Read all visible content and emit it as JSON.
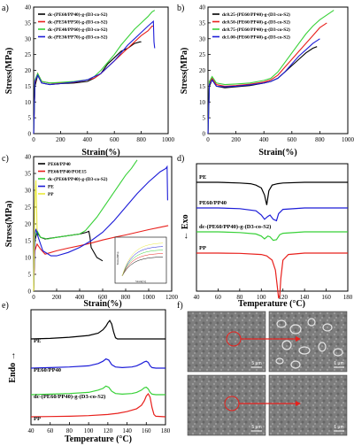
{
  "panels": {
    "a": {
      "label": "a)",
      "xlabel": "Strain(%)",
      "ylabel": "Stress(MPa)",
      "xticks": [
        "0",
        "200",
        "400",
        "600",
        "800",
        "1000"
      ],
      "yticks": [
        "0",
        "5",
        "10",
        "15",
        "20",
        "25",
        "30",
        "35",
        "40"
      ],
      "legend": [
        "dc-(PE60/PP40)-g-(D3-co-S2)",
        "dc-(PE50/PP50)-g-(D3-co-S2)",
        "dc-(PE40/PP60)-g-(D3-co-S2)",
        "dc-(PE30/PP70)-g-(D3-co-S2)"
      ]
    },
    "b": {
      "label": "b)",
      "xlabel": "Strain(%)",
      "ylabel": "Stress(MPa)",
      "xticks": [
        "0",
        "200",
        "400",
        "600",
        "800",
        "1000"
      ],
      "yticks": [
        "0",
        "5",
        "10",
        "15",
        "20",
        "25",
        "30",
        "35",
        "40"
      ],
      "legend": [
        "dc0.25-(PE60/PP40)-g-(D3-co-S2)",
        "dc0.50-(PE60/PP40)-g-(D3-co-S2)",
        "dc0.75-(PE60/PP40)-g-(D3-co-S2)",
        "dc1.00-(PE60/PP40)-g-(D3-co-S2)"
      ]
    },
    "c": {
      "label": "c)",
      "xlabel": "Strain(%)",
      "ylabel": "Stress(MPa)",
      "xticks": [
        "0",
        "200",
        "400",
        "600",
        "800",
        "1000",
        "1200"
      ],
      "yticks": [
        "0",
        "5",
        "10",
        "15",
        "20",
        "25",
        "30",
        "35",
        "40"
      ],
      "legend": [
        "PE60/PP40",
        "PE60/PP40/POE15",
        "dc-(PE60/PP40)-g-(D3-co-S2)",
        "PE",
        "PP"
      ],
      "inset": {
        "xlabel": "Strain(%)",
        "ylabel": "Stress(MPa)"
      }
    },
    "d": {
      "label": "d)",
      "xlabel": "Temperature (°C)",
      "ylabel": "← Exo",
      "xticks": [
        "40",
        "60",
        "80",
        "100",
        "120",
        "140",
        "160",
        "180"
      ],
      "curve_labels": [
        "PE",
        "PE60/PP40",
        "dc-(PE60/PP40)-g-(D3-co-S2)",
        "PP"
      ]
    },
    "e": {
      "label": "e)",
      "xlabel": "Temperature (°C)",
      "ylabel": "Endo →",
      "xticks": [
        "40",
        "60",
        "80",
        "100",
        "120",
        "140",
        "160",
        "180"
      ],
      "curve_labels": [
        "PE",
        "PE60/PP40",
        "dc-(PE60/PP40)-g-(D3-co-S2)",
        "PP"
      ]
    },
    "f": {
      "label": "f)",
      "scale_bars": [
        "5 μm",
        "1 μm",
        "5 μm",
        "1 μm"
      ]
    }
  },
  "colors": {
    "black": "#000000",
    "red": "#e8201c",
    "green": "#38d138",
    "blue": "#1c1cd8",
    "yellow": "#e9e93a"
  },
  "chart_data": [
    {
      "id": "a",
      "type": "line",
      "xlim": [
        0,
        1000
      ],
      "ylim": [
        0,
        40
      ],
      "series": [
        {
          "name": "dc-(PE60/PP40)-g-(D3-co-S2)",
          "color": "#000000",
          "x": [
            0,
            10,
            30,
            60,
            120,
            200,
            300,
            400,
            450,
            500,
            550,
            600,
            650,
            700,
            750,
            790,
            800
          ],
          "y": [
            0,
            15,
            18.5,
            16,
            15.5,
            15.8,
            16,
            16.5,
            17.5,
            19,
            22,
            24,
            26,
            27,
            28.5,
            29,
            29
          ]
        },
        {
          "name": "dc-(PE50/PP50)-g-(D3-co-S2)",
          "color": "#e8201c",
          "x": [
            0,
            10,
            30,
            60,
            120,
            200,
            300,
            400,
            450,
            500,
            550,
            600,
            650,
            700,
            750,
            800,
            850,
            880,
            890
          ],
          "y": [
            0,
            16,
            19,
            16.5,
            16,
            16,
            16.2,
            17,
            17.5,
            19,
            21,
            23,
            25,
            27,
            29,
            31,
            32.5,
            34,
            34
          ]
        },
        {
          "name": "dc-(PE40/PP60)-g-(D3-co-S2)",
          "color": "#38d138",
          "x": [
            0,
            10,
            30,
            60,
            120,
            200,
            300,
            400,
            450,
            500,
            550,
            600,
            650,
            700,
            750,
            800,
            850,
            880,
            900
          ],
          "y": [
            0,
            17,
            19,
            16.5,
            16,
            16.2,
            16.5,
            17,
            18,
            20,
            22.5,
            25,
            28,
            30.5,
            33,
            35,
            37,
            38.5,
            39
          ]
        },
        {
          "name": "dc-(PE30/PP70)-g-(D3-co-S2)",
          "color": "#1c1cd8",
          "x": [
            0,
            10,
            30,
            60,
            120,
            200,
            300,
            400,
            450,
            500,
            550,
            600,
            650,
            700,
            750,
            800,
            850,
            890,
            895,
            900
          ],
          "y": [
            0,
            16.5,
            18.5,
            16,
            15.5,
            15.8,
            16.3,
            17,
            18,
            19,
            21,
            23,
            25.5,
            28,
            30,
            32,
            34,
            35.5,
            29,
            27
          ]
        }
      ]
    },
    {
      "id": "b",
      "type": "line",
      "xlim": [
        0,
        1000
      ],
      "ylim": [
        0,
        40
      ],
      "series": [
        {
          "name": "dc0.25-(PE60/PP40)-g-(D3-co-S2)",
          "color": "#000000",
          "x": [
            0,
            10,
            30,
            60,
            120,
            200,
            300,
            400,
            450,
            500,
            550,
            600,
            650,
            700,
            750,
            780
          ],
          "y": [
            0,
            15,
            17,
            15,
            14.5,
            14.8,
            15.2,
            16,
            16.5,
            17.5,
            19.5,
            21.5,
            23.5,
            25.5,
            27,
            27.5
          ]
        },
        {
          "name": "dc0.50-(PE60/PP40)-g-(D3-co-S2)",
          "color": "#e8201c",
          "x": [
            0,
            10,
            30,
            60,
            120,
            200,
            300,
            400,
            450,
            500,
            550,
            600,
            650,
            700,
            750,
            800,
            850
          ],
          "y": [
            0,
            16,
            17.5,
            15.5,
            15,
            15.2,
            15.6,
            16.3,
            17,
            18.5,
            21,
            23.5,
            26,
            28.5,
            31,
            33.5,
            35
          ]
        },
        {
          "name": "dc0.75-(PE60/PP40)-g-(D3-co-S2)",
          "color": "#38d138",
          "x": [
            0,
            10,
            30,
            60,
            120,
            200,
            300,
            400,
            450,
            500,
            550,
            600,
            650,
            700,
            750,
            800,
            850,
            900
          ],
          "y": [
            0,
            16.5,
            18,
            16,
            15.5,
            15.7,
            16,
            16.8,
            17.5,
            19.5,
            22.5,
            25.5,
            28.5,
            31.5,
            34,
            36,
            37.5,
            39
          ]
        },
        {
          "name": "dc1.00-(PE60/PP40)-g-(D3-co-S2)",
          "color": "#1c1cd8",
          "x": [
            0,
            10,
            30,
            60,
            120,
            200,
            300,
            400,
            450,
            500,
            550,
            600,
            650,
            700,
            750,
            800
          ],
          "y": [
            0,
            15.5,
            17,
            15,
            14.8,
            15,
            15.4,
            16,
            16.5,
            17.5,
            19.5,
            22,
            24.5,
            26.5,
            28.5,
            30
          ]
        }
      ]
    },
    {
      "id": "c",
      "type": "line",
      "xlim": [
        0,
        1200
      ],
      "ylim": [
        0,
        40
      ],
      "series": [
        {
          "name": "PE60/PP40",
          "color": "#000000",
          "x": [
            0,
            10,
            30,
            60,
            100,
            200,
            300,
            400,
            460,
            480,
            490,
            500,
            550,
            600
          ],
          "y": [
            0,
            15,
            17.5,
            16,
            15.5,
            16,
            16.5,
            17,
            17.5,
            17.8,
            16,
            13,
            10,
            9
          ]
        },
        {
          "name": "PE60/PP40/POE15",
          "color": "#e8201c",
          "x": [
            0,
            10,
            30,
            60,
            100,
            200,
            300,
            400,
            500,
            600,
            700,
            800,
            900,
            1000,
            1100,
            1170
          ],
          "y": [
            0,
            12,
            14,
            12.5,
            11,
            12,
            12.8,
            13.5,
            14.3,
            15.2,
            16,
            16.7,
            17.5,
            18.3,
            19,
            19.5
          ]
        },
        {
          "name": "dc-(PE60/PP40)-g-(D3-co-S2)",
          "color": "#38d138",
          "x": [
            0,
            10,
            30,
            60,
            120,
            200,
            300,
            400,
            450,
            500,
            550,
            600,
            650,
            700,
            750,
            800,
            850,
            890,
            900
          ],
          "y": [
            0,
            16,
            18,
            16,
            15.5,
            16,
            16.5,
            17,
            18,
            20,
            22,
            24.5,
            27,
            29.5,
            32,
            34.5,
            36.5,
            38.5,
            39
          ]
        },
        {
          "name": "PE",
          "color": "#1c1cd8",
          "x": [
            0,
            10,
            20,
            40,
            80,
            150,
            200,
            300,
            400,
            500,
            600,
            700,
            800,
            900,
            1000,
            1050,
            1100,
            1150,
            1160,
            1165
          ],
          "y": [
            0,
            17,
            18.5,
            16,
            12,
            10.5,
            10.5,
            11.5,
            13,
            15,
            17.5,
            21,
            25,
            29,
            32.5,
            34,
            35.5,
            36.5,
            37,
            27
          ]
        },
        {
          "name": "PP",
          "color": "#e9e93a",
          "x": [
            0,
            5,
            10,
            15,
            20,
            25,
            30
          ],
          "y": [
            0,
            15,
            25,
            30,
            33,
            26,
            18
          ]
        }
      ]
    },
    {
      "id": "d",
      "type": "line",
      "xlim": [
        40,
        180
      ],
      "series": [
        {
          "name": "PE",
          "color": "#000000",
          "x": [
            40,
            60,
            80,
            90,
            95,
            100,
            103,
            105,
            107,
            110,
            115,
            120,
            140,
            160,
            180
          ],
          "y": [
            0,
            0,
            -0.05,
            -0.1,
            -0.2,
            -0.4,
            -0.9,
            -1.6,
            -0.6,
            -0.2,
            -0.1,
            -0.05,
            0,
            0,
            0
          ]
        },
        {
          "name": "PE60/PP40",
          "color": "#1c1cd8",
          "x": [
            40,
            60,
            80,
            95,
            100,
            103,
            106,
            108,
            111,
            114,
            116,
            120,
            140,
            160,
            180
          ],
          "y": [
            0,
            0,
            -0.05,
            -0.2,
            -0.5,
            -0.8,
            -0.6,
            -0.5,
            -0.8,
            -0.9,
            -0.4,
            -0.1,
            0,
            0,
            0
          ]
        },
        {
          "name": "dc-(PE60/PP40)-g-(D3-co-S2)",
          "color": "#38d138",
          "x": [
            40,
            60,
            80,
            95,
            100,
            103,
            106,
            108,
            111,
            114,
            117,
            120,
            140,
            160,
            180
          ],
          "y": [
            0,
            0,
            -0.05,
            -0.15,
            -0.3,
            -0.5,
            -0.3,
            -0.35,
            -0.6,
            -0.55,
            -0.2,
            -0.1,
            0,
            0,
            0
          ]
        },
        {
          "name": "PP",
          "color": "#e8201c",
          "x": [
            40,
            60,
            80,
            100,
            105,
            110,
            113,
            115,
            116,
            117,
            118,
            120,
            125,
            140,
            160,
            180
          ],
          "y": [
            0,
            0,
            -0.02,
            -0.1,
            -0.2,
            -0.5,
            -1.2,
            -2.5,
            -3.2,
            -3.0,
            -1.8,
            -0.5,
            -0.1,
            0,
            0,
            0
          ]
        }
      ]
    },
    {
      "id": "e",
      "type": "line",
      "xlim": [
        40,
        180
      ],
      "series": [
        {
          "name": "PE",
          "color": "#000000",
          "x": [
            40,
            60,
            80,
            100,
            110,
            115,
            118,
            120,
            122,
            124,
            126,
            128,
            130,
            140,
            160,
            180
          ],
          "y": [
            0,
            0.05,
            0.15,
            0.3,
            0.5,
            0.8,
            1.1,
            1.4,
            1.6,
            1.3,
            0.6,
            0.1,
            0,
            0,
            0,
            0
          ]
        },
        {
          "name": "PE60/PP40",
          "color": "#1c1cd8",
          "x": [
            40,
            60,
            80,
            100,
            110,
            115,
            118,
            121,
            124,
            128,
            135,
            145,
            150,
            155,
            158,
            160,
            162,
            164,
            166,
            170,
            180
          ],
          "y": [
            0,
            0.05,
            0.1,
            0.2,
            0.4,
            0.6,
            0.8,
            0.7,
            0.3,
            0.1,
            0.05,
            0.1,
            0.2,
            0.4,
            0.55,
            0.6,
            0.5,
            0.2,
            0.05,
            0,
            0
          ]
        },
        {
          "name": "dc-(PE60/PP40)-g-(D3-co-S2)",
          "color": "#38d138",
          "x": [
            40,
            60,
            80,
            100,
            110,
            115,
            118,
            121,
            124,
            128,
            135,
            145,
            150,
            155,
            158,
            160,
            162,
            164,
            166,
            170,
            180
          ],
          "y": [
            0,
            0.05,
            0.1,
            0.2,
            0.4,
            0.55,
            0.75,
            0.65,
            0.3,
            0.1,
            0.05,
            0.1,
            0.2,
            0.4,
            0.6,
            0.65,
            0.5,
            0.2,
            0.05,
            0,
            0
          ]
        },
        {
          "name": "PP",
          "color": "#e8201c",
          "x": [
            40,
            60,
            80,
            100,
            120,
            130,
            140,
            150,
            155,
            158,
            160,
            162,
            164,
            166,
            168,
            170,
            180
          ],
          "y": [
            0,
            0.02,
            0.05,
            0.1,
            0.2,
            0.3,
            0.45,
            0.7,
            1.0,
            1.4,
            1.8,
            2.0,
            1.7,
            0.8,
            0.2,
            0.05,
            0
          ]
        }
      ]
    }
  ]
}
